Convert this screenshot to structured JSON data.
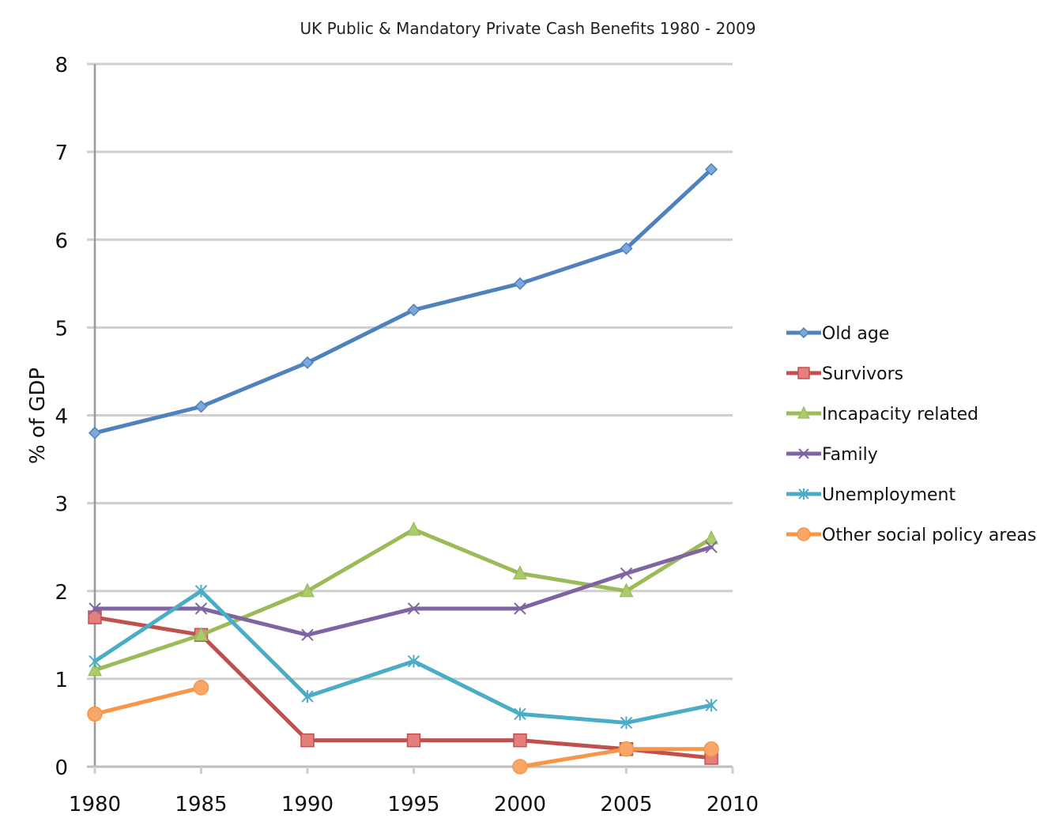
{
  "chart_data": {
    "type": "line",
    "title": "UK Public & Mandatory Private Cash Benefits 1980 - 2009",
    "xlabel": "",
    "ylabel": "% of GDP",
    "xlim": [
      1980,
      2010
    ],
    "ylim": [
      0,
      8
    ],
    "xticks": [
      1980,
      1985,
      1990,
      1995,
      2000,
      2005,
      2010
    ],
    "yticks": [
      0,
      1,
      2,
      3,
      4,
      5,
      6,
      7,
      8
    ],
    "grid": "horizontal",
    "legend_position": "right",
    "series": [
      {
        "name": "Old age",
        "color": "#4F81BD",
        "marker": "diamond",
        "points": [
          [
            1980,
            3.8
          ],
          [
            1985,
            4.1
          ],
          [
            1990,
            4.6
          ],
          [
            1995,
            5.2
          ],
          [
            2000,
            5.5
          ],
          [
            2005,
            5.9
          ],
          [
            2009,
            6.8
          ]
        ]
      },
      {
        "name": "Survivors",
        "color": "#C0504D",
        "marker": "square",
        "points": [
          [
            1980,
            1.7
          ],
          [
            1985,
            1.5
          ],
          [
            1990,
            0.3
          ],
          [
            1995,
            0.3
          ],
          [
            2000,
            0.3
          ],
          [
            2005,
            0.2
          ],
          [
            2009,
            0.1
          ]
        ]
      },
      {
        "name": "Incapacity related",
        "color": "#9BBB59",
        "marker": "triangle",
        "points": [
          [
            1980,
            1.1
          ],
          [
            1985,
            1.5
          ],
          [
            1990,
            2.0
          ],
          [
            1995,
            2.7
          ],
          [
            2000,
            2.2
          ],
          [
            2005,
            2.0
          ],
          [
            2009,
            2.6
          ]
        ]
      },
      {
        "name": "Family",
        "color": "#8064A2",
        "marker": "x",
        "points": [
          [
            1980,
            1.8
          ],
          [
            1985,
            1.8
          ],
          [
            1990,
            1.5
          ],
          [
            1995,
            1.8
          ],
          [
            2000,
            1.8
          ],
          [
            2005,
            2.2
          ],
          [
            2009,
            2.5
          ]
        ]
      },
      {
        "name": "Unemployment",
        "color": "#4BACC6",
        "marker": "star",
        "points": [
          [
            1980,
            1.2
          ],
          [
            1985,
            2.0
          ],
          [
            1990,
            0.8
          ],
          [
            1995,
            1.2
          ],
          [
            2000,
            0.6
          ],
          [
            2005,
            0.5
          ],
          [
            2009,
            0.7
          ]
        ]
      },
      {
        "name": "Other social policy areas",
        "color": "#F79646",
        "marker": "circle",
        "segments": [
          [
            [
              1980,
              0.6
            ],
            [
              1985,
              0.9
            ]
          ],
          [
            [
              2000,
              0.0
            ],
            [
              2005,
              0.2
            ],
            [
              2009,
              0.2
            ]
          ]
        ]
      }
    ]
  }
}
